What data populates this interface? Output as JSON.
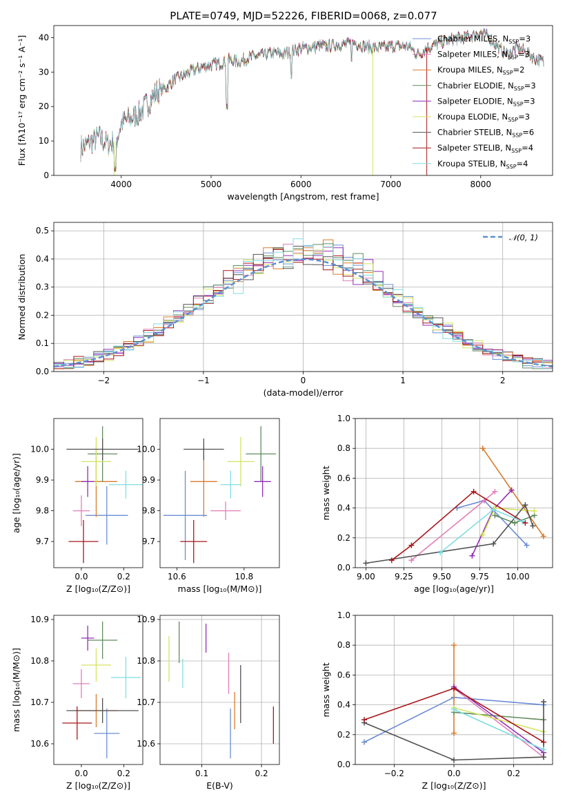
{
  "chart_data": [
    {
      "id": "spectrum",
      "type": "line",
      "title": "PLATE=0749, MJD=52226, FIBERID=0068, z=0.077",
      "xlabel": "wavelength [Angstrom, rest frame]",
      "ylabel": "Flux [fλ10⁻¹⁷ erg cm⁻² s⁻¹ A⁻¹]",
      "xlim": [
        3250,
        8800
      ],
      "ylim": [
        0,
        43.5
      ],
      "xticks": [
        4000,
        5000,
        6000,
        7000,
        8000
      ],
      "yticks": [
        0,
        10,
        20,
        30,
        40
      ],
      "grid": false,
      "legend_position": "upper right",
      "continuum": {
        "x": [
          3550,
          3650,
          3750,
          3850,
          3950,
          4000,
          4100,
          4200,
          4300,
          4400,
          4500,
          4600,
          4700,
          4800,
          4900,
          5000,
          5100,
          5200,
          5300,
          5400,
          5500,
          5600,
          5700,
          5800,
          5900,
          6000,
          6100,
          6200,
          6300,
          6400,
          6500,
          6600,
          6700,
          6800,
          6900,
          7000,
          7100,
          7200,
          7300,
          7400,
          7500,
          7600,
          7700,
          7800,
          7900,
          8000,
          8100,
          8200,
          8300,
          8400,
          8500,
          8600,
          8700
        ],
        "y": [
          8,
          9.5,
          11,
          9,
          10.5,
          15,
          16.5,
          18,
          21,
          24.5,
          25.5,
          28,
          29,
          30.5,
          31.5,
          32,
          32.5,
          33.5,
          33,
          34,
          34.5,
          35,
          35.5,
          35.2,
          36,
          37,
          37,
          37.5,
          37.5,
          38,
          38,
          38.5,
          37.5,
          37,
          37,
          37.5,
          37.5,
          37.5,
          35,
          37,
          38,
          39,
          39.5,
          40,
          40.5,
          41.5,
          40,
          37,
          35,
          37,
          36,
          34,
          33
        ]
      },
      "dips": [
        {
          "x": 3934,
          "y": 2
        },
        {
          "x": 5175,
          "y": 20
        },
        {
          "x": 5893,
          "y": 29
        },
        {
          "x": 6563,
          "y": 34
        }
      ],
      "series": [
        {
          "name": "Chabrier MILES, N",
          "n": "3",
          "color": "#6a8cd4"
        },
        {
          "name": "Salpeter MILES, N",
          "n": "3",
          "color": "#e17fb6"
        },
        {
          "name": "Kroupa MILES, N",
          "n": "2",
          "color": "#d97a29"
        },
        {
          "name": "Chabrier ELODIE, N",
          "n": "3",
          "color": "#5e8b5e"
        },
        {
          "name": "Salpeter ELODIE, N",
          "n": "3",
          "color": "#8f2cb7"
        },
        {
          "name": "Kroupa ELODIE, N",
          "n": "3",
          "color": "#d4e35f"
        },
        {
          "name": "Chabrier STELIB, N",
          "n": "6",
          "color": "#505050"
        },
        {
          "name": "Salpeter STELIB, N",
          "n": "4",
          "color": "#a8151a"
        },
        {
          "name": "Kroupa STELIB, N",
          "n": "4",
          "color": "#7fdde0"
        }
      ],
      "legend_subscript": "SSP"
    },
    {
      "id": "residuals",
      "type": "histogram",
      "xlabel": "(data-model)/error",
      "ylabel": "Normed distribution",
      "xlim": [
        -2.5,
        2.5
      ],
      "ylim": [
        0,
        0.53
      ],
      "xticks": [
        -2,
        -1,
        0,
        1,
        2
      ],
      "xtick_labels": [
        "−2",
        "−1",
        "0",
        "1",
        "2"
      ],
      "yticks": [
        0.0,
        0.1,
        0.2,
        0.3,
        0.4,
        0.5
      ],
      "ytick_labels": [
        "0.0",
        "0.1",
        "0.2",
        "0.3",
        "0.4",
        "0.5"
      ],
      "grid": true,
      "legend": "𝒩(0, 1)",
      "legend_position": "upper right",
      "bin_width": 0.1,
      "series_colors": [
        "#6a8cd4",
        "#e17fb6",
        "#d97a29",
        "#5e8b5e",
        "#8f2cb7",
        "#d4e35f",
        "#505050",
        "#a8151a",
        "#7fdde0"
      ]
    },
    {
      "id": "age-vs-Z",
      "type": "scatter",
      "xlabel": "Z [log₁₀(Z/Z⊙)]",
      "ylabel": "age  [log₁₀(age/yr)]",
      "xlim": [
        -0.13,
        0.29
      ],
      "ylim": [
        9.615,
        10.1
      ],
      "xticks": [
        0.0,
        0.2
      ],
      "xtick_labels": [
        "0.0",
        "0.2"
      ],
      "yticks": [
        9.7,
        9.8,
        9.9,
        10.0
      ],
      "ytick_labels": [
        "9.7",
        "9.8",
        "9.9",
        "10.0"
      ],
      "grid": false,
      "points": [
        {
          "x": 0.12,
          "y": 9.785,
          "xerr": 0.1,
          "yerr": 0.095,
          "color": "#6a8cd4"
        },
        {
          "x": 0.0,
          "y": 9.8,
          "xerr": 0.04,
          "yerr": 0.05,
          "color": "#e17fb6"
        },
        {
          "x": 0.07,
          "y": 9.895,
          "xerr": 0.1,
          "yerr": 0.115,
          "color": "#d97a29"
        },
        {
          "x": 0.1,
          "y": 9.985,
          "xerr": 0.07,
          "yerr": 0.09,
          "color": "#5e8b5e"
        },
        {
          "x": 0.03,
          "y": 9.895,
          "xerr": 0.03,
          "yerr": 0.05,
          "color": "#8f2cb7"
        },
        {
          "x": 0.07,
          "y": 9.96,
          "xerr": 0.07,
          "yerr": 0.08,
          "color": "#d4e35f"
        },
        {
          "x": 0.1,
          "y": 10.0,
          "xerr": 0.17,
          "yerr": 0.035,
          "color": "#505050"
        },
        {
          "x": 0.01,
          "y": 9.7,
          "xerr": 0.07,
          "yerr": 0.07,
          "color": "#a8151a"
        },
        {
          "x": 0.21,
          "y": 9.885,
          "xerr": 0.08,
          "yerr": 0.045,
          "color": "#7fdde0"
        }
      ]
    },
    {
      "id": "age-vs-mass",
      "type": "scatter",
      "xlabel": "mass [log₁₀(M/M⊙)]",
      "ylabel": "",
      "xlim": [
        10.55,
        10.905
      ],
      "ylim": [
        9.615,
        10.1
      ],
      "xticks": [
        10.6,
        10.8
      ],
      "xtick_labels": [
        "10.6",
        "10.8"
      ],
      "yticks": [
        9.7,
        9.8,
        9.9,
        10.0
      ],
      "ytick_labels": [
        "9.7",
        "9.8",
        "9.9",
        "10.0"
      ],
      "grid": false,
      "points": [
        {
          "x": 10.625,
          "y": 9.785,
          "xerr": 0.065,
          "yerr": 0.145,
          "color": "#6a8cd4"
        },
        {
          "x": 10.745,
          "y": 9.8,
          "xerr": 0.045,
          "yerr": 0.03,
          "color": "#e17fb6"
        },
        {
          "x": 10.68,
          "y": 9.895,
          "xerr": 0.04,
          "yerr": 0.115,
          "color": "#d97a29"
        },
        {
          "x": 10.85,
          "y": 9.985,
          "xerr": 0.045,
          "yerr": 0.09,
          "color": "#5e8b5e"
        },
        {
          "x": 10.855,
          "y": 9.895,
          "xerr": 0.025,
          "yerr": 0.05,
          "color": "#8f2cb7"
        },
        {
          "x": 10.79,
          "y": 9.96,
          "xerr": 0.04,
          "yerr": 0.08,
          "color": "#d4e35f"
        },
        {
          "x": 10.68,
          "y": 10.0,
          "xerr": 0.06,
          "yerr": 0.035,
          "color": "#505050"
        },
        {
          "x": 10.65,
          "y": 9.7,
          "xerr": 0.04,
          "yerr": 0.07,
          "color": "#a8151a"
        },
        {
          "x": 10.76,
          "y": 9.885,
          "xerr": 0.03,
          "yerr": 0.045,
          "color": "#7fdde0"
        }
      ]
    },
    {
      "id": "massweight-vs-age",
      "type": "line",
      "xlabel": "age  [log₁₀(age/yr)]",
      "ylabel": "mass weight",
      "xlim": [
        8.93,
        10.23
      ],
      "ylim": [
        0.0,
        1.0
      ],
      "xticks": [
        9.0,
        9.25,
        9.5,
        9.75,
        10.0
      ],
      "xtick_labels": [
        "9.00",
        "9.25",
        "9.50",
        "9.75",
        "10.00"
      ],
      "yticks": [
        0.0,
        0.2,
        0.4,
        0.6,
        0.8,
        1.0
      ],
      "ytick_labels": [
        "0.0",
        "0.2",
        "0.4",
        "0.6",
        "0.8",
        "1.0"
      ],
      "grid": true,
      "series": [
        {
          "color": "#6a8cd4",
          "x": [
            9.6,
            9.78,
            10.06
          ],
          "y": [
            0.4,
            0.45,
            0.15
          ]
        },
        {
          "color": "#e17fb6",
          "x": [
            9.3,
            9.78,
            9.85
          ],
          "y": [
            0.05,
            0.45,
            0.51
          ]
        },
        {
          "color": "#d97a29",
          "x": [
            9.77,
            10.17
          ],
          "y": [
            0.8,
            0.21
          ]
        },
        {
          "color": "#5e8b5e",
          "x": [
            9.85,
            9.98,
            10.11
          ],
          "y": [
            0.35,
            0.3,
            0.35
          ]
        },
        {
          "color": "#8f2cb7",
          "x": [
            9.7,
            9.84,
            9.96
          ],
          "y": [
            0.08,
            0.39,
            0.52
          ]
        },
        {
          "color": "#d4e35f",
          "x": [
            9.77,
            9.85,
            10.11
          ],
          "y": [
            0.22,
            0.4,
            0.38
          ]
        },
        {
          "color": "#505050",
          "x": [
            9.0,
            9.84,
            10.05,
            10.1
          ],
          "y": [
            0.03,
            0.16,
            0.42,
            0.28
          ]
        },
        {
          "color": "#a8151a",
          "x": [
            9.17,
            9.3,
            9.71,
            10.05
          ],
          "y": [
            0.05,
            0.15,
            0.51,
            0.3
          ]
        },
        {
          "color": "#7fdde0",
          "x": [
            9.49,
            9.84,
            10.03
          ],
          "y": [
            0.1,
            0.39,
            0.31
          ]
        }
      ]
    },
    {
      "id": "mass-vs-Z",
      "type": "scatter",
      "xlabel": "Z [log₁₀(Z/Z⊙)]",
      "ylabel": "mass [log₁₀(M/M⊙)]",
      "xlim": [
        -0.13,
        0.29
      ],
      "ylim": [
        10.55,
        10.91
      ],
      "xticks": [
        0.0,
        0.2
      ],
      "xtick_labels": [
        "0.0",
        "0.2"
      ],
      "yticks": [
        10.6,
        10.7,
        10.8,
        10.9
      ],
      "ytick_labels": [
        "10.6",
        "10.7",
        "10.8",
        "10.9"
      ],
      "grid": false,
      "points": [
        {
          "x": 0.12,
          "y": 10.625,
          "xerr": 0.06,
          "yerr": 0.06,
          "color": "#6a8cd4"
        },
        {
          "x": 0.0,
          "y": 10.745,
          "xerr": 0.04,
          "yerr": 0.035,
          "color": "#e17fb6"
        },
        {
          "x": 0.07,
          "y": 10.68,
          "xerr": 0.1,
          "yerr": 0.04,
          "color": "#d97a29"
        },
        {
          "x": 0.1,
          "y": 10.85,
          "xerr": 0.07,
          "yerr": 0.045,
          "color": "#5e8b5e"
        },
        {
          "x": 0.03,
          "y": 10.855,
          "xerr": 0.03,
          "yerr": 0.03,
          "color": "#8f2cb7"
        },
        {
          "x": 0.07,
          "y": 10.79,
          "xerr": 0.07,
          "yerr": 0.04,
          "color": "#d4e35f"
        },
        {
          "x": 0.1,
          "y": 10.68,
          "xerr": 0.17,
          "yerr": 0.03,
          "color": "#505050"
        },
        {
          "x": -0.02,
          "y": 10.65,
          "xerr": 0.07,
          "yerr": 0.04,
          "color": "#a8151a"
        },
        {
          "x": 0.21,
          "y": 10.76,
          "xerr": 0.07,
          "yerr": 0.05,
          "color": "#7fdde0"
        }
      ]
    },
    {
      "id": "mass-vs-ebv",
      "type": "scatter",
      "xlabel": "E(B-V)",
      "ylabel": "",
      "xlim": [
        0.03,
        0.23
      ],
      "ylim": [
        10.55,
        10.91
      ],
      "xticks": [
        0.1,
        0.2
      ],
      "xtick_labels": [
        "0.1",
        "0.2"
      ],
      "yticks": [
        10.6,
        10.7,
        10.8,
        10.9
      ],
      "ytick_labels": [
        "10.6",
        "10.7",
        "10.8",
        "10.9"
      ],
      "grid": true,
      "points": [
        {
          "x": 0.148,
          "y": 10.625,
          "xerr": 0.0,
          "yerr": 0.06,
          "color": "#6a8cd4"
        },
        {
          "x": 0.145,
          "y": 10.77,
          "xerr": 0.0,
          "yerr": 0.05,
          "color": "#e17fb6"
        },
        {
          "x": 0.155,
          "y": 10.68,
          "xerr": 0.0,
          "yerr": 0.045,
          "color": "#d97a29"
        },
        {
          "x": 0.062,
          "y": 10.845,
          "xerr": 0.0,
          "yerr": 0.05,
          "color": "#5e8b5e"
        },
        {
          "x": 0.107,
          "y": 10.855,
          "xerr": 0.0,
          "yerr": 0.035,
          "color": "#8f2cb7"
        },
        {
          "x": 0.045,
          "y": 10.805,
          "xerr": 0.0,
          "yerr": 0.055,
          "color": "#d4e35f"
        },
        {
          "x": 0.165,
          "y": 10.72,
          "xerr": 0.0,
          "yerr": 0.07,
          "color": "#505050"
        },
        {
          "x": 0.22,
          "y": 10.645,
          "xerr": 0.0,
          "yerr": 0.045,
          "color": "#a8151a"
        },
        {
          "x": 0.068,
          "y": 10.77,
          "xerr": 0.0,
          "yerr": 0.035,
          "color": "#7fdde0"
        }
      ]
    },
    {
      "id": "massweight-vs-Z",
      "type": "line",
      "xlabel": "Z [log₁₀(Z/Z⊙)]",
      "ylabel": "mass weight",
      "xlim": [
        -0.33,
        0.33
      ],
      "ylim": [
        0.0,
        1.0
      ],
      "xticks": [
        -0.2,
        0.0,
        0.2
      ],
      "xtick_labels": [
        "−0.2",
        "0.0",
        "0.2"
      ],
      "yticks": [
        0.0,
        0.2,
        0.4,
        0.6,
        0.8,
        1.0
      ],
      "ytick_labels": [
        "0.0",
        "0.2",
        "0.4",
        "0.6",
        "0.8",
        "1.0"
      ],
      "grid": true,
      "series": [
        {
          "color": "#6a8cd4",
          "x": [
            -0.3,
            0.0,
            0.3
          ],
          "y": [
            0.15,
            0.45,
            0.4
          ]
        },
        {
          "color": "#e17fb6",
          "x": [
            0.0,
            0.3
          ],
          "y": [
            0.51,
            0.05
          ]
        },
        {
          "color": "#d97a29",
          "x": [
            0.0,
            0.0
          ],
          "y": [
            0.8,
            0.21
          ]
        },
        {
          "color": "#5e8b5e",
          "x": [
            0.0,
            0.3
          ],
          "y": [
            0.35,
            0.3
          ]
        },
        {
          "color": "#8f2cb7",
          "x": [
            0.0,
            0.3
          ],
          "y": [
            0.52,
            0.08
          ]
        },
        {
          "color": "#d4e35f",
          "x": [
            0.0,
            0.3
          ],
          "y": [
            0.38,
            0.22
          ]
        },
        {
          "color": "#505050",
          "x": [
            -0.3,
            0.0,
            0.3,
            0.3
          ],
          "y": [
            0.28,
            0.03,
            0.05,
            0.42
          ]
        },
        {
          "color": "#a8151a",
          "x": [
            -0.3,
            0.0,
            0.3
          ],
          "y": [
            0.3,
            0.51,
            0.15
          ]
        },
        {
          "color": "#7fdde0",
          "x": [
            0.0,
            0.3
          ],
          "y": [
            0.37,
            0.1
          ]
        }
      ]
    }
  ]
}
